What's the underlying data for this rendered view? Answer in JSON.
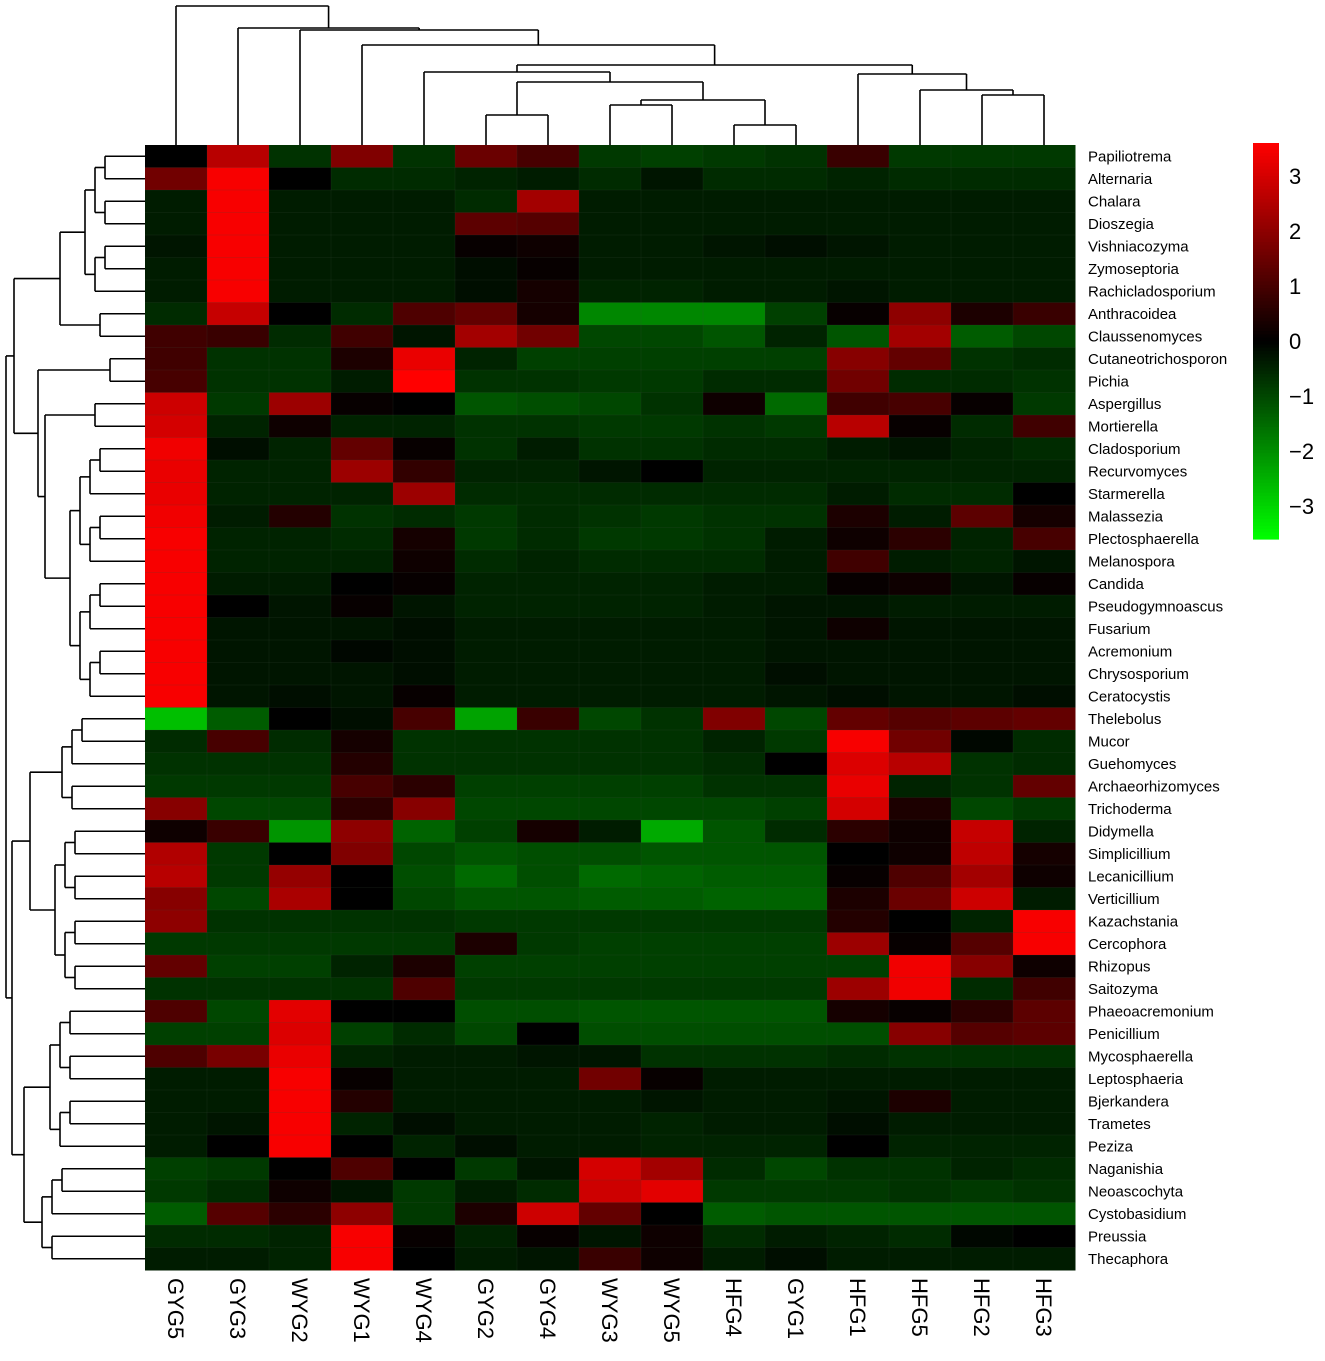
{
  "chart_data": {
    "type": "heatmap",
    "columns": [
      "GYG5",
      "GYG3",
      "WYG2",
      "WYG1",
      "WYG4",
      "GYG2",
      "GYG4",
      "WYG3",
      "WYG5",
      "HFG4",
      "GYG1",
      "HFG1",
      "HFG5",
      "HFG2",
      "HFG3"
    ],
    "rows": [
      "Papiliotrema",
      "Alternaria",
      "Chalara",
      "Dioszegia",
      "Vishniacozyma",
      "Zymoseptoria",
      "Rachicladosporium",
      "Anthracoidea",
      "Claussenomyces",
      "Cutaneotrichosporon",
      "Pichia",
      "Aspergillus",
      "Mortierella",
      "Cladosporium",
      "Recurvomyces",
      "Starmerella",
      "Malassezia",
      "Plectosphaerella",
      "Melanospora",
      "Candida",
      "Pseudogymnoascus",
      "Fusarium",
      "Acremonium",
      "Chrysosporium",
      "Ceratocystis",
      "Thelebolus",
      "Mucor",
      "Guehomyces",
      "Archaeorhizomyces",
      "Trichoderma",
      "Didymella",
      "Simplicillium",
      "Lecanicillium",
      "Verticillium",
      "Kazachstania",
      "Cercophora",
      "Rhizopus",
      "Saitozyma",
      "Phaeoacremonium",
      "Penicillium",
      "Mycosphaerella",
      "Leptosphaeria",
      "Bjerkandera",
      "Trametes",
      "Peziza",
      "Naganishia",
      "Neoascochyta",
      "Cystobasidium",
      "Preussia",
      "Thecaphora"
    ],
    "values": [
      [
        0.0,
        2.6,
        -0.7,
        1.8,
        -0.7,
        1.5,
        1.0,
        -0.8,
        -0.9,
        -0.8,
        -0.7,
        0.8,
        -0.8,
        -0.8,
        -0.8
      ],
      [
        1.6,
        3.5,
        0.0,
        -0.6,
        -0.6,
        -0.5,
        -0.4,
        -0.6,
        -0.3,
        -0.6,
        -0.6,
        -0.5,
        -0.6,
        -0.6,
        -0.6
      ],
      [
        -0.4,
        3.5,
        -0.4,
        -0.4,
        -0.4,
        -0.6,
        2.3,
        -0.4,
        -0.4,
        -0.4,
        -0.4,
        -0.4,
        -0.4,
        -0.4,
        -0.4
      ],
      [
        -0.4,
        3.5,
        -0.4,
        -0.4,
        -0.4,
        1.3,
        1.2,
        -0.4,
        -0.4,
        -0.4,
        -0.4,
        -0.4,
        -0.4,
        -0.4,
        -0.4
      ],
      [
        -0.3,
        3.5,
        -0.4,
        -0.4,
        -0.4,
        0.1,
        0.2,
        -0.4,
        -0.4,
        -0.3,
        -0.2,
        -0.3,
        -0.4,
        -0.4,
        -0.4
      ],
      [
        -0.4,
        3.5,
        -0.4,
        -0.4,
        -0.4,
        -0.2,
        0.1,
        -0.4,
        -0.4,
        -0.4,
        -0.4,
        -0.4,
        -0.4,
        -0.4,
        -0.4
      ],
      [
        -0.4,
        3.5,
        -0.4,
        -0.4,
        -0.4,
        -0.2,
        0.3,
        -0.5,
        -0.5,
        -0.4,
        -0.4,
        -0.3,
        -0.4,
        -0.4,
        -0.4
      ],
      [
        -0.6,
        2.8,
        0.0,
        -0.6,
        1.1,
        1.4,
        0.3,
        -1.9,
        -1.9,
        -1.9,
        -0.9,
        0.1,
        2.0,
        0.4,
        0.8
      ],
      [
        0.9,
        0.8,
        -0.6,
        0.9,
        -0.3,
        2.3,
        1.6,
        -1.0,
        -1.0,
        -1.2,
        -0.5,
        -1.2,
        2.3,
        -1.3,
        -1.0
      ],
      [
        0.9,
        -0.7,
        -0.7,
        0.4,
        3.3,
        -0.5,
        -0.9,
        -0.9,
        -0.9,
        -0.9,
        -0.9,
        1.9,
        1.4,
        -0.7,
        -0.6
      ],
      [
        1.0,
        -0.7,
        -0.7,
        -0.4,
        3.6,
        -0.7,
        -0.7,
        -0.8,
        -0.8,
        -0.6,
        -0.6,
        1.6,
        -0.6,
        -0.6,
        -0.7
      ],
      [
        2.9,
        -0.8,
        2.2,
        0.1,
        0.0,
        -1.2,
        -1.1,
        -1.0,
        -0.7,
        0.2,
        -1.5,
        0.9,
        1.0,
        0.1,
        -0.8
      ],
      [
        3.0,
        -0.5,
        0.2,
        -0.5,
        -0.5,
        -0.7,
        -0.7,
        -0.8,
        -0.8,
        -0.7,
        -0.8,
        2.6,
        0.1,
        -0.6,
        0.9
      ],
      [
        3.4,
        -0.2,
        -0.5,
        1.4,
        0.1,
        -0.7,
        -0.4,
        -0.7,
        -0.7,
        -0.6,
        -0.6,
        -0.4,
        -0.3,
        -0.5,
        -0.6
      ],
      [
        3.3,
        -0.5,
        -0.5,
        2.2,
        0.7,
        -0.5,
        -0.5,
        -0.3,
        0.0,
        -0.5,
        -0.5,
        -0.5,
        -0.5,
        -0.5,
        -0.5
      ],
      [
        3.3,
        -0.5,
        -0.5,
        -0.5,
        2.2,
        -0.6,
        -0.6,
        -0.6,
        -0.6,
        -0.6,
        -0.6,
        -0.4,
        -0.6,
        -0.6,
        0.0
      ],
      [
        3.4,
        -0.4,
        0.5,
        -0.7,
        -0.6,
        -0.8,
        -0.6,
        -0.7,
        -0.8,
        -0.7,
        -0.7,
        0.4,
        -0.4,
        1.3,
        0.3
      ],
      [
        3.5,
        -0.5,
        -0.5,
        -0.6,
        0.3,
        -0.8,
        -0.6,
        -0.8,
        -0.8,
        -0.7,
        -0.4,
        0.2,
        0.6,
        -0.5,
        1.0
      ],
      [
        3.5,
        -0.5,
        -0.5,
        -0.5,
        0.2,
        -0.6,
        -0.5,
        -0.6,
        -0.6,
        -0.6,
        -0.4,
        0.9,
        -0.4,
        -0.5,
        -0.3
      ],
      [
        3.5,
        -0.4,
        -0.4,
        0.0,
        0.1,
        -0.5,
        -0.5,
        -0.5,
        -0.5,
        -0.4,
        -0.4,
        0.1,
        0.2,
        -0.3,
        0.1
      ],
      [
        3.5,
        0.0,
        -0.3,
        0.1,
        -0.3,
        -0.5,
        -0.5,
        -0.5,
        -0.5,
        -0.4,
        -0.3,
        -0.3,
        -0.4,
        -0.4,
        -0.4
      ],
      [
        3.5,
        -0.3,
        -0.3,
        -0.3,
        -0.2,
        -0.4,
        -0.4,
        -0.4,
        -0.4,
        -0.4,
        -0.3,
        0.2,
        -0.3,
        -0.3,
        -0.3
      ],
      [
        3.5,
        -0.3,
        -0.3,
        -0.1,
        -0.2,
        -0.4,
        -0.4,
        -0.4,
        -0.4,
        -0.4,
        -0.3,
        -0.3,
        -0.3,
        -0.3,
        -0.3
      ],
      [
        3.5,
        -0.3,
        -0.3,
        -0.3,
        -0.2,
        -0.4,
        -0.4,
        -0.4,
        -0.4,
        -0.4,
        -0.2,
        -0.3,
        -0.3,
        -0.3,
        -0.3
      ],
      [
        3.5,
        -0.3,
        -0.2,
        -0.3,
        0.1,
        -0.4,
        -0.4,
        -0.4,
        -0.4,
        -0.4,
        -0.3,
        -0.2,
        -0.3,
        -0.3,
        -0.2
      ],
      [
        -2.7,
        -1.3,
        0.0,
        -0.2,
        1.0,
        -2.3,
        0.8,
        -1.0,
        -0.7,
        1.8,
        -1.0,
        1.4,
        1.2,
        1.3,
        1.4
      ],
      [
        -0.6,
        1.0,
        -0.6,
        0.3,
        -0.7,
        -0.7,
        -0.7,
        -0.7,
        -0.7,
        -0.5,
        -0.8,
        3.5,
        1.6,
        -0.1,
        -0.6
      ],
      [
        -0.7,
        -0.7,
        -0.7,
        0.5,
        -0.7,
        -0.7,
        -0.7,
        -0.7,
        -0.7,
        -0.6,
        0.0,
        3.1,
        2.6,
        -0.7,
        -0.6
      ],
      [
        -0.8,
        -0.8,
        -0.8,
        1.0,
        0.6,
        -0.9,
        -0.9,
        -0.9,
        -0.9,
        -0.7,
        -0.7,
        3.3,
        -0.5,
        -0.7,
        1.4
      ],
      [
        1.9,
        -1.0,
        -1.0,
        0.6,
        1.9,
        -1.0,
        -1.0,
        -1.0,
        -1.0,
        -1.0,
        -0.9,
        3.0,
        0.4,
        -1.0,
        -0.8
      ],
      [
        0.2,
        0.8,
        -2.1,
        2.0,
        -1.4,
        -0.9,
        0.3,
        -0.4,
        -2.4,
        -1.2,
        -0.6,
        0.6,
        0.2,
        2.8,
        -0.5
      ],
      [
        2.5,
        -0.8,
        0.0,
        1.8,
        -1.0,
        -1.2,
        -1.1,
        -1.1,
        -1.2,
        -1.2,
        -1.2,
        0.0,
        0.2,
        2.7,
        0.3
      ],
      [
        2.6,
        -0.8,
        2.1,
        0.0,
        -1.1,
        -1.5,
        -1.1,
        -1.5,
        -1.4,
        -1.3,
        -1.3,
        0.1,
        1.1,
        2.3,
        0.2
      ],
      [
        1.9,
        -1.0,
        2.4,
        0.0,
        -1.0,
        -1.2,
        -1.2,
        -1.3,
        -1.3,
        -1.4,
        -1.4,
        0.4,
        1.5,
        2.9,
        -0.4
      ],
      [
        2.0,
        -0.7,
        -0.7,
        -0.7,
        -0.7,
        -0.8,
        -0.8,
        -0.8,
        -0.8,
        -0.8,
        -0.8,
        0.5,
        0.0,
        -0.5,
        3.5
      ],
      [
        -0.8,
        -0.8,
        -0.8,
        -0.8,
        -0.8,
        0.4,
        -0.8,
        -0.9,
        -0.9,
        -0.9,
        -0.9,
        2.2,
        0.1,
        1.2,
        3.5
      ],
      [
        1.4,
        -0.9,
        -0.9,
        -0.5,
        0.4,
        -0.9,
        -0.9,
        -0.9,
        -0.9,
        -0.9,
        -0.9,
        -0.9,
        3.4,
        1.9,
        0.2
      ],
      [
        -0.7,
        -0.7,
        -0.7,
        -0.7,
        1.1,
        -0.8,
        -0.8,
        -0.8,
        -0.8,
        -0.8,
        -0.8,
        2.2,
        3.4,
        -0.6,
        0.9
      ],
      [
        1.1,
        -1.0,
        3.2,
        0.0,
        0.0,
        -1.1,
        -1.1,
        -1.2,
        -1.2,
        -1.2,
        -1.2,
        0.3,
        0.1,
        0.6,
        1.3
      ],
      [
        -0.9,
        -0.9,
        3.1,
        -0.9,
        -0.6,
        -1.0,
        0.0,
        -1.1,
        -1.1,
        -1.1,
        -1.1,
        -1.1,
        1.9,
        1.2,
        1.3
      ],
      [
        1.1,
        1.7,
        3.3,
        -0.5,
        -0.4,
        -0.4,
        -0.3,
        -0.3,
        -0.7,
        -0.7,
        -0.7,
        -0.6,
        -0.7,
        -0.7,
        -0.7
      ],
      [
        -0.4,
        -0.4,
        3.5,
        0.1,
        -0.4,
        -0.4,
        -0.4,
        1.6,
        0.1,
        -0.4,
        -0.4,
        -0.4,
        -0.4,
        -0.4,
        -0.4
      ],
      [
        -0.4,
        -0.4,
        3.5,
        0.5,
        -0.4,
        -0.4,
        -0.4,
        -0.4,
        -0.3,
        -0.4,
        -0.4,
        -0.3,
        0.4,
        -0.4,
        -0.4
      ],
      [
        -0.4,
        -0.3,
        3.5,
        -0.5,
        -0.2,
        -0.4,
        -0.4,
        -0.4,
        -0.5,
        -0.4,
        -0.4,
        -0.2,
        -0.4,
        -0.4,
        -0.4
      ],
      [
        -0.4,
        0.0,
        3.5,
        0.0,
        -0.5,
        -0.2,
        -0.4,
        -0.4,
        -0.5,
        -0.5,
        -0.5,
        0.0,
        -0.5,
        -0.5,
        -0.5
      ],
      [
        -0.9,
        -0.8,
        0.0,
        1.1,
        0.0,
        -0.8,
        -0.3,
        3.0,
        2.3,
        -0.6,
        -1.0,
        -0.7,
        -0.7,
        -0.5,
        -0.6
      ],
      [
        -0.8,
        -0.6,
        0.2,
        -0.3,
        -0.8,
        -0.4,
        -0.6,
        2.9,
        3.2,
        -0.8,
        -0.8,
        -0.8,
        -0.7,
        -0.8,
        -0.7
      ],
      [
        -1.3,
        1.2,
        0.6,
        2.0,
        -0.8,
        0.4,
        2.9,
        1.4,
        0.0,
        -1.3,
        -1.2,
        -1.2,
        -1.2,
        -1.2,
        -1.2
      ],
      [
        -0.6,
        -0.6,
        -0.5,
        3.5,
        0.1,
        -0.5,
        0.1,
        -0.3,
        0.2,
        -0.6,
        -0.4,
        -0.5,
        -0.6,
        -0.1,
        0.0
      ],
      [
        -0.4,
        -0.4,
        -0.5,
        3.5,
        0.0,
        -0.4,
        -0.3,
        0.8,
        0.2,
        -0.4,
        -0.2,
        -0.4,
        -0.4,
        -0.4,
        -0.4
      ]
    ],
    "color_scale": {
      "min": -3.6,
      "mid": 0,
      "max": 3.6,
      "low_color": "#00ff00",
      "mid_color": "#000000",
      "high_color": "#ff0000",
      "ticks": [
        3,
        2,
        1,
        0,
        -1,
        -2,
        -3
      ],
      "tick_labels": [
        "3",
        "2",
        "1",
        "0",
        "−1",
        "−2",
        "−3"
      ]
    },
    "column_dendrogram": true,
    "row_dendrogram": true,
    "legend_position": "top-right"
  }
}
